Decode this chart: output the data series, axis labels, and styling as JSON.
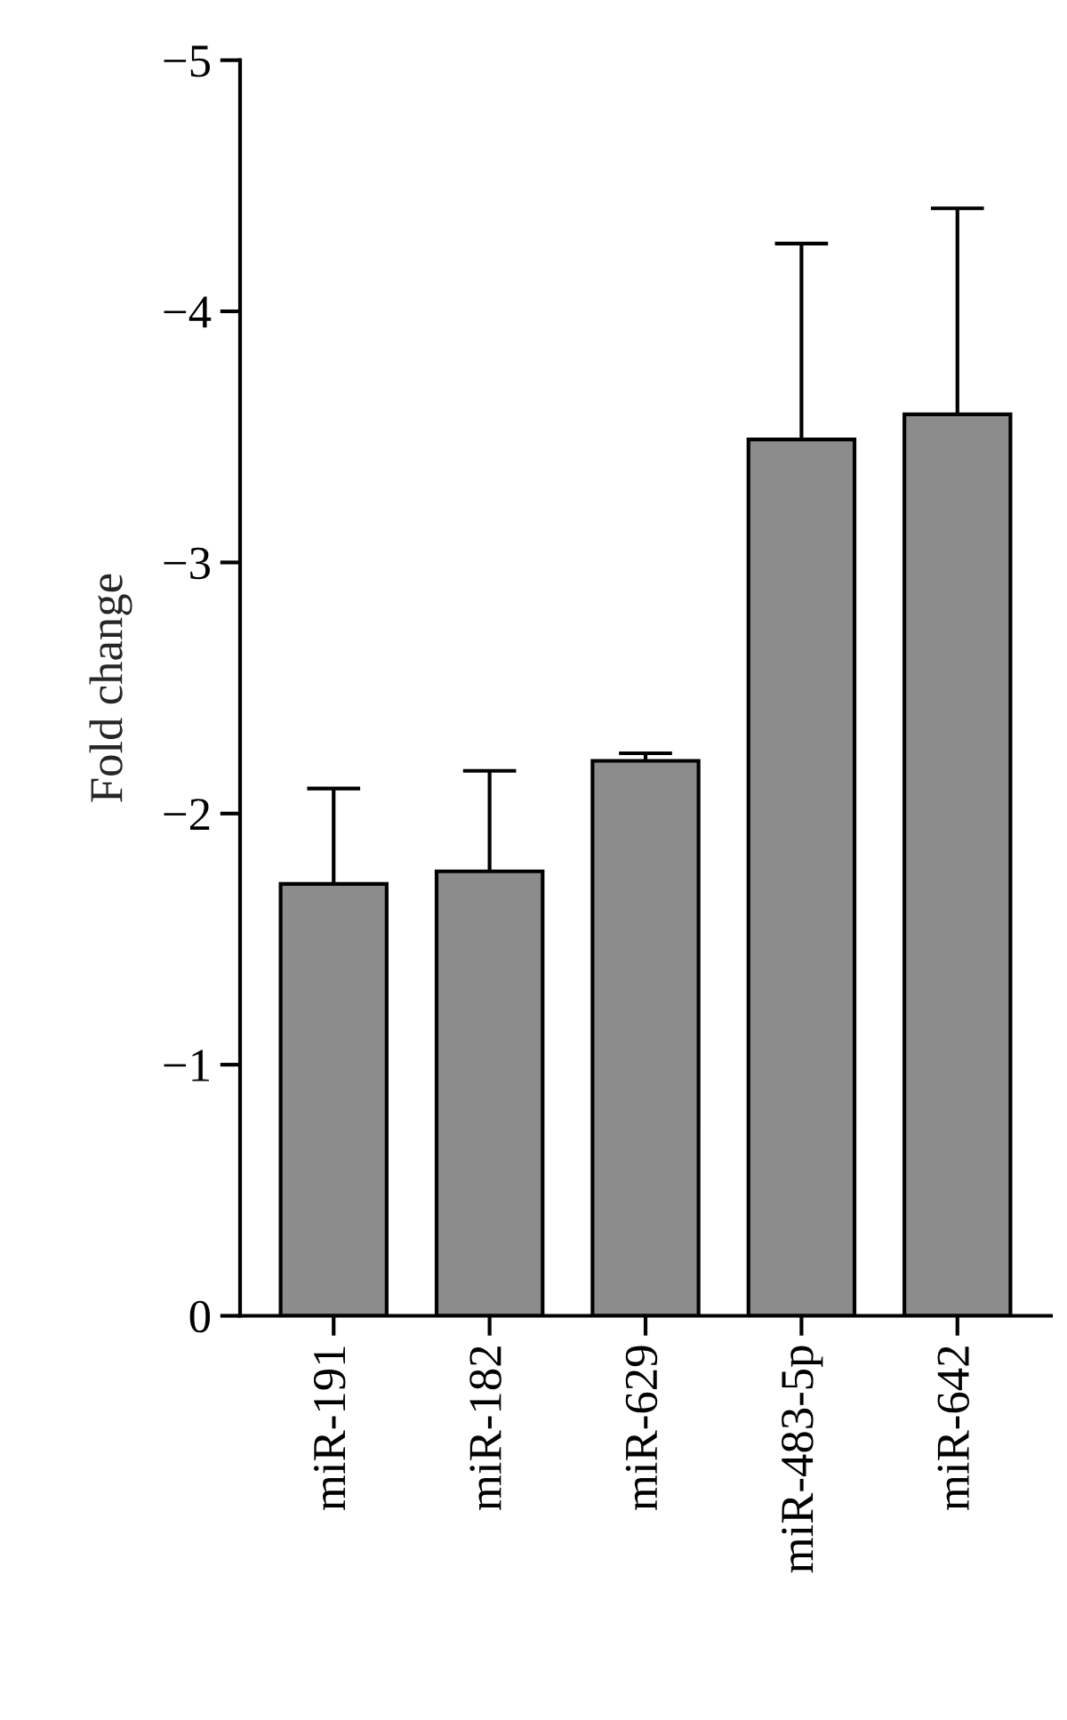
{
  "chart_data": {
    "type": "bar",
    "ylabel": "Fold change",
    "categories": [
      "miR-191",
      "miR-182",
      "miR-629",
      "miR-483-5p",
      "miR-642"
    ],
    "values": [
      -1.72,
      -1.77,
      -2.21,
      -3.49,
      -3.59
    ],
    "errors": [
      [
        -2.1,
        -1.72
      ],
      [
        -2.17,
        -1.77
      ],
      [
        -2.24,
        -2.21
      ],
      [
        -4.27,
        -3.49
      ],
      [
        -4.41,
        -3.59
      ]
    ],
    "color": "#8c8c8c",
    "ylim": [
      0,
      -5
    ],
    "yticks": [
      0,
      {
        "value": -1,
        "label": "−1"
      },
      {
        "value": -2,
        "label": "−2"
      },
      {
        "value": -3,
        "label": "−3"
      },
      {
        "value": -4,
        "label": "−4"
      },
      {
        "value": -5,
        "label": "−5"
      }
    ],
    "grid": false,
    "legend": false
  }
}
